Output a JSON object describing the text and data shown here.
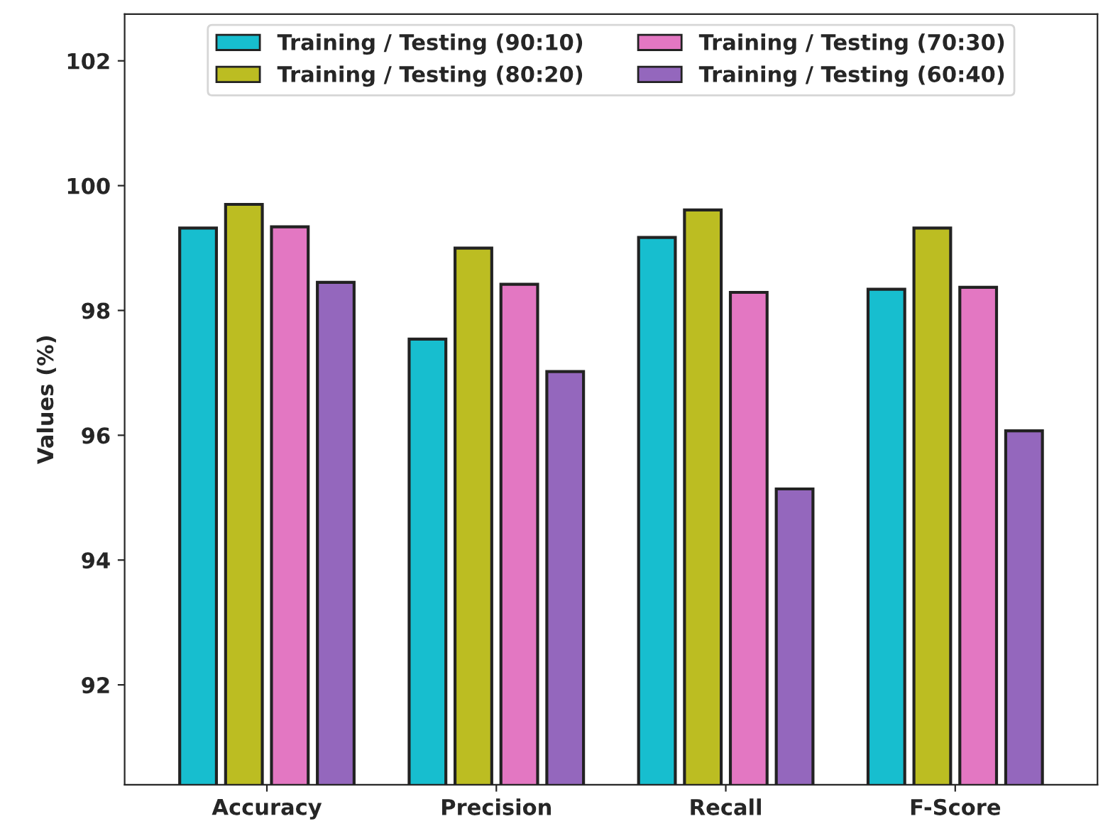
{
  "chart_data": {
    "type": "bar",
    "ylabel": "Values (%)",
    "categories": [
      "Accuracy",
      "Precision",
      "Recall",
      "F-Score"
    ],
    "series": [
      {
        "name": "Training / Testing (90:10)",
        "color": "#17becf",
        "values": [
          99.32,
          97.54,
          99.17,
          98.34
        ]
      },
      {
        "name": "Training / Testing (80:20)",
        "color": "#bcbd22",
        "values": [
          99.7,
          99.0,
          99.61,
          99.32
        ]
      },
      {
        "name": "Training / Testing (70:30)",
        "color": "#e377c2",
        "values": [
          99.34,
          98.42,
          98.29,
          98.37
        ]
      },
      {
        "name": "Training / Testing (60:40)",
        "color": "#9467bd",
        "values": [
          98.45,
          97.02,
          95.14,
          96.07
        ]
      }
    ],
    "ylim": [
      90.4,
      102.75
    ],
    "yticks": [
      92,
      94,
      96,
      98,
      100,
      102
    ],
    "grid": false,
    "legend": "top"
  }
}
